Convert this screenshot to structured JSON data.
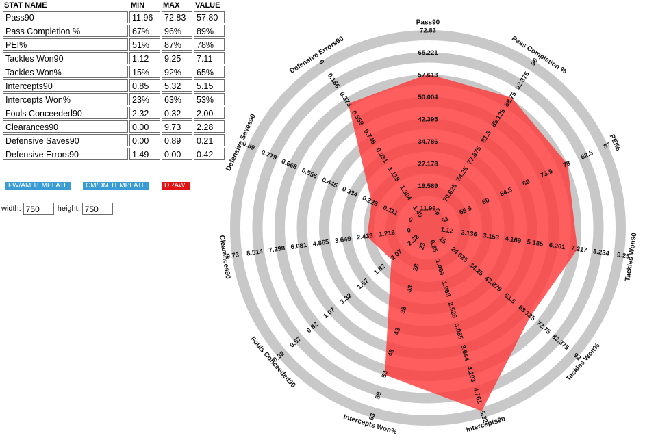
{
  "table": {
    "headers": [
      "STAT NAME",
      "MIN",
      "MAX",
      "VALUE"
    ],
    "rows": [
      {
        "name": "Pass90",
        "min": "11.96",
        "max": "72.83",
        "value": "57.80"
      },
      {
        "name": "Pass Completion %",
        "min": "67%",
        "max": "96%",
        "value": "89%"
      },
      {
        "name": "PEI%",
        "min": "51%",
        "max": "87%",
        "value": "78%"
      },
      {
        "name": "Tackles  Won90",
        "min": "1.12",
        "max": "9.25",
        "value": "7.11"
      },
      {
        "name": "Tackles  Won%",
        "min": "15%",
        "max": "92%",
        "value": "65%"
      },
      {
        "name": "Intercepts90",
        "min": "0.85",
        "max": "5.32",
        "value": "5.15"
      },
      {
        "name": "Intercepts Won%",
        "min": "23%",
        "max": "63%",
        "value": "53%"
      },
      {
        "name": "Fouls Conceeded90",
        "min": "2.32",
        "max": "0.32",
        "value": "2.00"
      },
      {
        "name": "Clearances90",
        "min": "0.00",
        "max": "9.73",
        "value": "2.28"
      },
      {
        "name": "Defensive Saves90",
        "min": "0.00",
        "max": "0.89",
        "value": "0.21"
      },
      {
        "name": "Defensive Errors90",
        "min": "1.49",
        "max": "0.00",
        "value": "0.42"
      }
    ]
  },
  "buttons": {
    "fw_am": "FW/AM TEMPLATE",
    "cm_dm": "CM/DM TEMPLATE",
    "draw": "DRAW!"
  },
  "size": {
    "width_label": "width:",
    "width_value": "750",
    "height_label": "height:",
    "height_value": "750"
  },
  "colors": {
    "ring": "#c8c8c8",
    "fill": "#ff3b3b",
    "fw_am_button": "#3a9bd5",
    "cm_dm_button": "#3a9bd5",
    "draw_button": "#e01414"
  },
  "chart_data": {
    "type": "radar",
    "axes": [
      {
        "name": "Pass90",
        "min": 11.96,
        "max": 72.83,
        "value": 57.8,
        "ticks": [
          "11.96",
          "19.569",
          "27.178",
          "34.786",
          "42.395",
          "50.004",
          "57.613",
          "65.221",
          "72.83"
        ]
      },
      {
        "name": "Pass Completion %",
        "min": 67,
        "max": 96,
        "value": 89,
        "ticks": [
          "67",
          "70.625",
          "74.25",
          "77.875",
          "81.5",
          "85.125",
          "88.75",
          "92.375",
          "96"
        ]
      },
      {
        "name": "PEI%",
        "min": 51,
        "max": 87,
        "value": 78,
        "ticks": [
          "51",
          "55.5",
          "60",
          "64.5",
          "69",
          "73.5",
          "78",
          "82.5",
          "87"
        ]
      },
      {
        "name": "Tackles  Won90",
        "min": 1.12,
        "max": 9.25,
        "value": 7.11,
        "ticks": [
          "1.12",
          "2.136",
          "3.153",
          "4.169",
          "5.185",
          "6.201",
          "7.217",
          "8.234",
          "9.25"
        ]
      },
      {
        "name": "Tackles  Won%",
        "min": 15,
        "max": 92,
        "value": 65,
        "ticks": [
          "15",
          "24.625",
          "34.25",
          "43.875",
          "53.5",
          "63.125",
          "72.75",
          "82.375",
          "92"
        ]
      },
      {
        "name": "Intercepts90",
        "min": 0.85,
        "max": 5.32,
        "value": 5.15,
        "ticks": [
          "0.85",
          "1.409",
          "1.968",
          "2.526",
          "3.085",
          "3.644",
          "4.203",
          "4.761",
          "5.32"
        ]
      },
      {
        "name": "Intercepts Won%",
        "min": 23,
        "max": 63,
        "value": 53,
        "ticks": [
          "23",
          "28",
          "33",
          "38",
          "43",
          "48",
          "53",
          "58",
          "63"
        ]
      },
      {
        "name": "Fouls Conceeded90",
        "min": 2.32,
        "max": 0.32,
        "value": 2.0,
        "ticks": [
          "2.32",
          "2.07",
          "1.82",
          "1.57",
          "1.32",
          "1.07",
          "0.82",
          "0.57",
          "0.32"
        ]
      },
      {
        "name": "Clearances90",
        "min": 0,
        "max": 9.73,
        "value": 2.28,
        "ticks": [
          "0",
          "1.216",
          "2.433",
          "3.649",
          "4.865",
          "6.081",
          "7.298",
          "8.514",
          "9.73"
        ]
      },
      {
        "name": "Defensive Saves90",
        "min": 0,
        "max": 0.89,
        "value": 0.21,
        "ticks": [
          "0",
          "0.111",
          "0.223",
          "0.334",
          "0.445",
          "0.556",
          "0.668",
          "0.779",
          "0.89"
        ]
      },
      {
        "name": "Defensive Errors90",
        "min": 1.49,
        "max": 0,
        "value": 0.42,
        "ticks": [
          "1.49",
          "1.304",
          "1.118",
          "0.931",
          "0.745",
          "0.559",
          "0.373",
          "0.186",
          "0"
        ]
      }
    ]
  }
}
